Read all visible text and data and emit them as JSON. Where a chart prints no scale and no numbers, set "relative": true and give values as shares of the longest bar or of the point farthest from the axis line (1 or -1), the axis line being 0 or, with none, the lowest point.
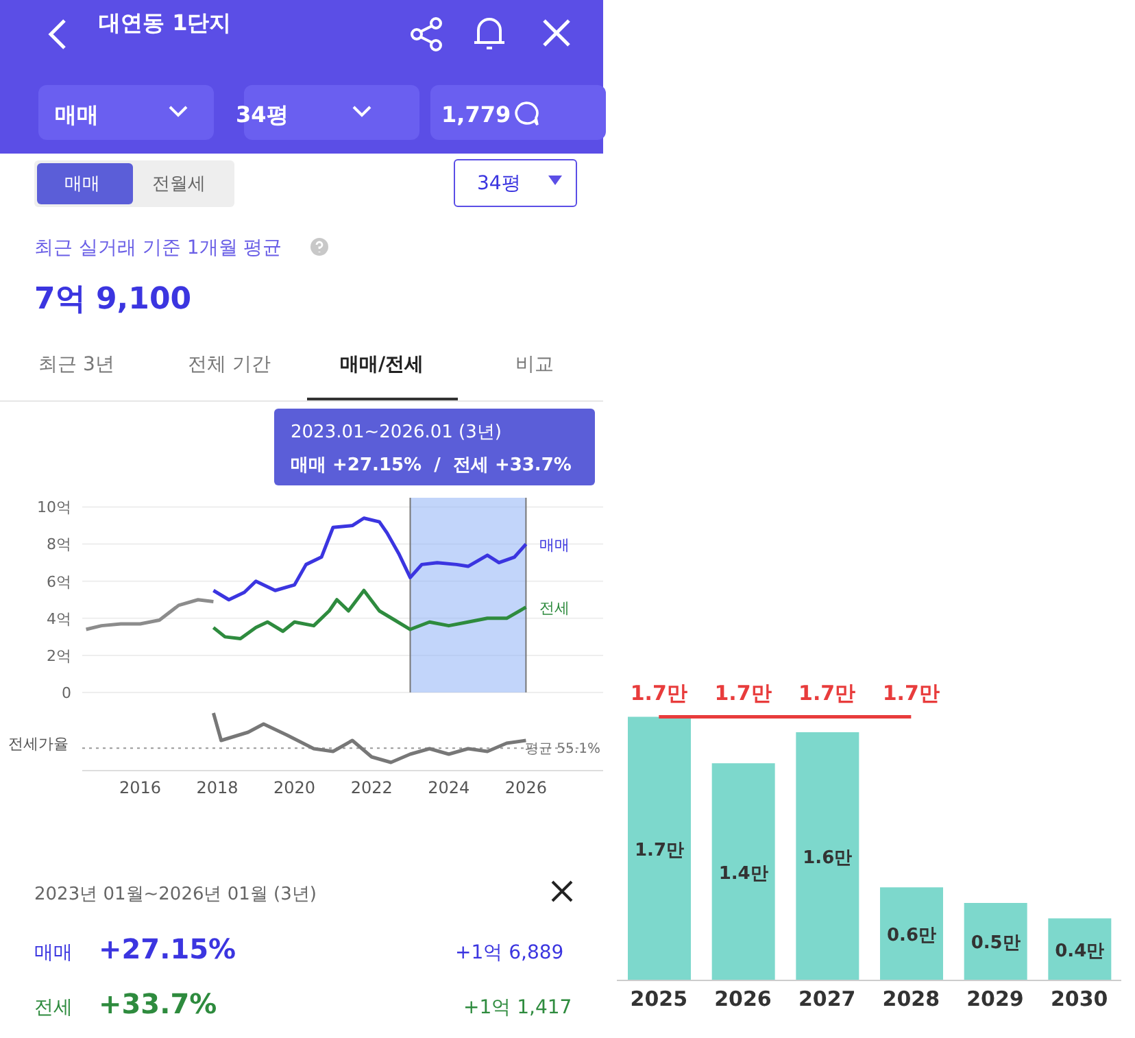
{
  "chart_data": [
    {
      "type": "line",
      "title": "대연동 1단지",
      "xlim": [
        2014.5,
        2028
      ],
      "xticks": [
        2016,
        2018,
        2020,
        2022,
        2024,
        2026
      ],
      "ylim": [
        0,
        10.5
      ],
      "yticks": [
        {
          "value": 0,
          "label": "0"
        },
        {
          "value": 2,
          "label": "2억"
        },
        {
          "value": 4,
          "label": "4억"
        },
        {
          "value": 6,
          "label": "6억"
        },
        {
          "value": 8,
          "label": "8억"
        },
        {
          "value": 10,
          "label": "10억"
        }
      ],
      "grid": "y",
      "tick_labels": "y",
      "line_style": "solid",
      "series": [
        {
          "color": "#8c8c8c",
          "x": [
            2014.6,
            2015,
            2015.5,
            2016,
            2016.5,
            2017,
            2017.5,
            2017.9
          ],
          "values": [
            3.4,
            3.6,
            3.7,
            3.7,
            3.9,
            4.7,
            5.0,
            4.9
          ]
        },
        {
          "name": "매매",
          "color": "#3b35e0",
          "x": [
            2017.9,
            2018.3,
            2018.7,
            2019,
            2019.5,
            2020,
            2020.3,
            2020.7,
            2021,
            2021.5,
            2021.8,
            2022.2,
            2022.4,
            2022.7,
            2023,
            2023.3,
            2023.7,
            2024.2,
            2024.5,
            2025,
            2025.3,
            2025.7,
            2026
          ],
          "values": [
            5.5,
            5.0,
            5.4,
            6.0,
            5.5,
            5.8,
            6.9,
            7.3,
            8.9,
            9.0,
            9.4,
            9.2,
            8.6,
            7.5,
            6.2,
            6.9,
            7.0,
            6.9,
            6.8,
            7.4,
            7.0,
            7.3,
            8.0
          ]
        },
        {
          "name": "전세",
          "color": "#2e8b3e",
          "x": [
            2017.9,
            2018.2,
            2018.6,
            2019,
            2019.3,
            2019.7,
            2020,
            2020.5,
            2020.9,
            2021.1,
            2021.4,
            2021.8,
            2022.2,
            2022.6,
            2023,
            2023.5,
            2024,
            2024.5,
            2025,
            2025.5,
            2026
          ],
          "values": [
            3.5,
            3.0,
            2.9,
            3.5,
            3.8,
            3.3,
            3.8,
            3.6,
            4.4,
            5.0,
            4.4,
            5.5,
            4.4,
            3.9,
            3.4,
            3.8,
            3.6,
            3.8,
            4.0,
            4.0,
            4.6
          ]
        }
      ],
      "ref_lines": [
        {
          "axis": "x",
          "value": 2023,
          "color": "#777777"
        },
        {
          "axis": "x",
          "value": 2026,
          "color": "#777777"
        }
      ],
      "bands": [
        {
          "axis": "x",
          "from": 2023,
          "to": 2026,
          "color": "#8fb3f5"
        }
      ],
      "annotations": [
        "매매",
        "34평",
        "1,779",
        "매매",
        "전월세",
        "34평",
        "최근 실거래 기준 1개월 평균",
        "7억 9,100",
        "최근 3년",
        "전체 기간",
        "매매/전세",
        "비교",
        "2023.01~2026.01 (3년)",
        "매매 +27.15%  /  전세 +33.7%",
        "2023년 01월~2026년 01월 (3년)",
        "매매",
        "+27.15%",
        "+1억 6,889",
        "전세",
        "+33.7%",
        "+1억 1,417"
      ]
    },
    {
      "type": "line",
      "relative": true,
      "ylabel": "전세가율",
      "xlim": [
        2014.5,
        2028
      ],
      "xticks": [
        2016,
        2018,
        2020,
        2022,
        2024,
        2026
      ],
      "tick_labels": "x",
      "series": [
        {
          "color": "#777777",
          "x": [
            2017.9,
            2018.1,
            2018.8,
            2019.2,
            2019.8,
            2020.5,
            2021,
            2021.5,
            2022,
            2022.5,
            2023,
            2023.5,
            2024,
            2024.5,
            2025,
            2025.5,
            2026
          ],
          "values": [
            1.0,
            0.5,
            0.65,
            0.8,
            0.6,
            0.35,
            0.3,
            0.5,
            0.2,
            0.1,
            0.25,
            0.35,
            0.25,
            0.35,
            0.3,
            0.45,
            0.5
          ]
        }
      ],
      "ref_lines": [
        {
          "axis": "y",
          "value": 0.36,
          "label": "평균 55.1%",
          "color": "#999999",
          "line_style": "dotted"
        }
      ]
    },
    {
      "type": "bar",
      "categories": [
        "2025",
        "2026",
        "2027",
        "2028",
        "2029",
        "2030"
      ],
      "series": [
        {
          "color": "#7dd8cc",
          "values": [
            1.7,
            1.4,
            1.6,
            0.6,
            0.5,
            0.4
          ],
          "value_labels": [
            "1.7만",
            "1.4만",
            "1.6만",
            "0.6만",
            "0.5만",
            "0.4만"
          ]
        },
        {
          "type": "line",
          "color": "#e83c3c",
          "values": [
            1.7,
            1.7,
            1.7,
            1.7,
            null,
            null
          ],
          "value_labels": [
            "1.7만",
            "1.7만",
            "1.7만",
            "1.7만",
            null,
            null
          ]
        }
      ]
    }
  ]
}
